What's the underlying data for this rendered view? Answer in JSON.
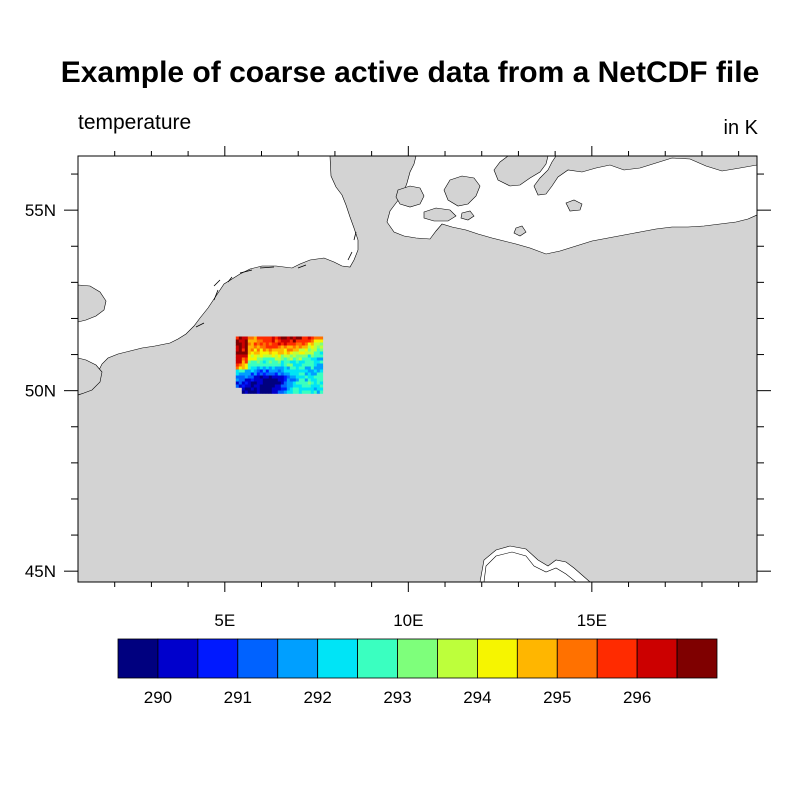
{
  "title": "Example of coarse active data from a NetCDF file",
  "left_string": "temperature",
  "right_string": "in K",
  "map": {
    "lon_range": [
      1,
      19.5
    ],
    "lat_range": [
      44.7,
      56.5
    ],
    "land_color": "#d3d3d3",
    "ocean_color": "#ffffff",
    "lat_ticks": [
      {
        "value": 45,
        "label": "45N"
      },
      {
        "value": 50,
        "label": "50N"
      },
      {
        "value": 55,
        "label": "55N"
      }
    ],
    "lon_ticks": [
      {
        "value": 5,
        "label": "5E"
      },
      {
        "value": 10,
        "label": "10E"
      },
      {
        "value": 15,
        "label": "15E"
      }
    ],
    "data_region": {
      "lon_range": [
        5.3,
        7.6
      ],
      "lat_range": [
        50.0,
        51.5
      ],
      "variable": "temperature",
      "units": "K"
    }
  },
  "colorbar": {
    "colors": [
      "#00007f",
      "#0000cc",
      "#0019ff",
      "#0062ff",
      "#009fff",
      "#00e4f6",
      "#3affc0",
      "#7eff7b",
      "#bdff3b",
      "#f6f500",
      "#ffb600",
      "#ff7100",
      "#ff2b00",
      "#cc0000",
      "#7f0000"
    ],
    "labels": [
      "290",
      "291",
      "292",
      "293",
      "294",
      "295",
      "296"
    ]
  }
}
